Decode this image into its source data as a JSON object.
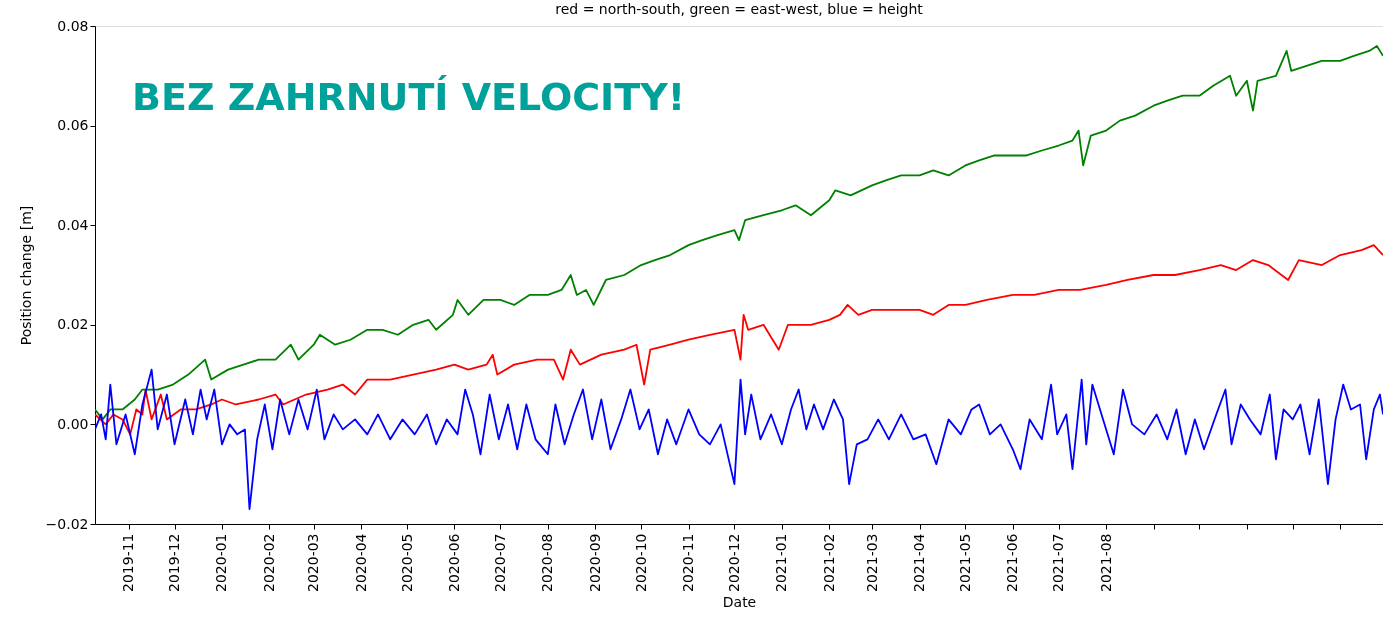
{
  "chart_data": {
    "type": "line",
    "title": "red = north-south, green = east-west, blue = height",
    "xlabel": "Date",
    "ylabel": "Position change [m]",
    "annotations": [
      "BEZ ZAHRNUTÍ VELOCITY!"
    ],
    "xlim": [
      "2019-10-10",
      "2022-01-29"
    ],
    "xticks": [
      "2019-11",
      "2019-12",
      "2020-01",
      "2020-02",
      "2020-03",
      "2020-04",
      "2020-05",
      "2020-06",
      "2020-07",
      "2020-08",
      "2020-09",
      "2020-10",
      "2020-11",
      "2020-12",
      "2021-01",
      "2021-02",
      "2021-03",
      "2021-04",
      "2021-05",
      "2021-06",
      "2021-07",
      "2021-08",
      {
        "value": "2021-09",
        "label": null
      },
      {
        "value": "2021-10",
        "label": null
      },
      {
        "value": "2021-11",
        "label": null
      },
      {
        "value": "2021-12",
        "label": null
      },
      {
        "value": "2022-01",
        "label": null
      }
    ],
    "ylim": [
      -0.02,
      0.08
    ],
    "yticks": [
      {
        "value": -0.02,
        "label": "−0.02"
      },
      {
        "value": 0,
        "label": "0.00"
      },
      {
        "value": 0.02,
        "label": "0.02"
      },
      {
        "value": 0.04,
        "label": "0.04"
      },
      {
        "value": 0.06,
        "label": "0.06"
      },
      {
        "value": 0.08,
        "label": "0.08"
      }
    ],
    "grid": false,
    "marker": "none",
    "line_style": "solid",
    "series": [
      {
        "color": "#ff0000",
        "x": [
          "2019-10-10",
          "2019-10-17",
          "2019-10-22",
          "2019-10-28",
          "2019-11-02",
          "2019-11-06",
          "2019-11-10",
          "2019-11-12",
          "2019-11-16",
          "2019-11-22",
          "2019-11-26",
          "2019-12-05",
          "2019-12-15",
          "2019-12-25",
          "2020-01-01",
          "2020-01-10",
          "2020-01-25",
          "2020-02-05",
          "2020-02-10",
          "2020-02-25",
          "2020-03-10",
          "2020-03-20",
          "2020-03-28",
          "2020-04-05",
          "2020-04-20",
          "2020-05-05",
          "2020-05-20",
          "2020-06-01",
          "2020-06-10",
          "2020-06-22",
          "2020-06-26",
          "2020-06-29",
          "2020-07-10",
          "2020-07-25",
          "2020-08-05",
          "2020-08-11",
          "2020-08-16",
          "2020-08-22",
          "2020-09-05",
          "2020-09-20",
          "2020-09-28",
          "2020-10-03",
          "2020-10-07",
          "2020-10-20",
          "2020-11-01",
          "2020-11-15",
          "2020-12-01",
          "2020-12-05",
          "2020-12-07",
          "2020-12-10",
          "2020-12-20",
          "2020-12-30",
          "2021-01-05",
          "2021-01-20",
          "2021-02-01",
          "2021-02-08",
          "2021-02-13",
          "2021-02-20",
          "2021-03-01",
          "2021-03-15",
          "2021-04-01",
          "2021-04-10",
          "2021-04-20",
          "2021-05-01",
          "2021-05-15",
          "2021-06-01",
          "2021-06-15",
          "2021-07-01",
          "2021-07-15",
          "2021-08-01",
          "2021-08-15",
          "2021-09-01",
          "2021-09-15",
          "2021-10-01",
          "2021-10-15",
          "2021-10-25",
          "2021-11-05",
          "2021-11-15",
          "2021-11-28",
          "2021-12-05",
          "2021-12-20",
          "2022-01-01",
          "2022-01-15",
          "2022-01-23",
          "2022-01-29"
        ],
        "values": [
          0.002,
          0.0,
          0.002,
          0.001,
          -0.002,
          0.003,
          0.002,
          0.007,
          0.001,
          0.006,
          0.001,
          0.003,
          0.003,
          0.004,
          0.005,
          0.004,
          0.005,
          0.006,
          0.004,
          0.006,
          0.007,
          0.008,
          0.006,
          0.009,
          0.009,
          0.01,
          0.011,
          0.012,
          0.011,
          0.012,
          0.014,
          0.01,
          0.012,
          0.013,
          0.013,
          0.009,
          0.015,
          0.012,
          0.014,
          0.015,
          0.016,
          0.008,
          0.015,
          0.016,
          0.017,
          0.018,
          0.019,
          0.013,
          0.022,
          0.019,
          0.02,
          0.015,
          0.02,
          0.02,
          0.021,
          0.022,
          0.024,
          0.022,
          0.023,
          0.023,
          0.023,
          0.022,
          0.024,
          0.024,
          0.025,
          0.026,
          0.026,
          0.027,
          0.027,
          0.028,
          0.029,
          0.03,
          0.03,
          0.031,
          0.032,
          0.031,
          0.033,
          0.032,
          0.029,
          0.033,
          0.032,
          0.034,
          0.035,
          0.036,
          0.034
        ]
      },
      {
        "color": "#008000",
        "x": [
          "2019-10-10",
          "2019-10-15",
          "2019-10-20",
          "2019-10-28",
          "2019-11-05",
          "2019-11-10",
          "2019-11-20",
          "2019-11-30",
          "2019-12-10",
          "2019-12-21",
          "2019-12-25",
          "2020-01-05",
          "2020-01-15",
          "2020-01-25",
          "2020-02-05",
          "2020-02-15",
          "2020-02-20",
          "2020-03-01",
          "2020-03-05",
          "2020-03-15",
          "2020-03-25",
          "2020-04-05",
          "2020-04-15",
          "2020-04-25",
          "2020-05-05",
          "2020-05-15",
          "2020-05-20",
          "2020-05-31",
          "2020-06-03",
          "2020-06-10",
          "2020-06-20",
          "2020-07-01",
          "2020-07-10",
          "2020-07-20",
          "2020-08-01",
          "2020-08-10",
          "2020-08-16",
          "2020-08-20",
          "2020-08-26",
          "2020-08-31",
          "2020-09-08",
          "2020-09-20",
          "2020-10-01",
          "2020-10-10",
          "2020-10-20",
          "2020-11-01",
          "2020-11-10",
          "2020-11-20",
          "2020-12-01",
          "2020-12-04",
          "2020-12-08",
          "2020-12-20",
          "2021-01-01",
          "2021-01-10",
          "2021-01-20",
          "2021-02-01",
          "2021-02-05",
          "2021-02-15",
          "2021-03-01",
          "2021-03-10",
          "2021-03-20",
          "2021-04-01",
          "2021-04-10",
          "2021-04-20",
          "2021-05-01",
          "2021-05-10",
          "2021-05-20",
          "2021-06-01",
          "2021-06-10",
          "2021-06-20",
          "2021-07-01",
          "2021-07-10",
          "2021-07-14",
          "2021-07-17",
          "2021-07-22",
          "2021-08-01",
          "2021-08-10",
          "2021-08-20",
          "2021-09-01",
          "2021-09-10",
          "2021-09-20",
          "2021-10-01",
          "2021-10-10",
          "2021-10-21",
          "2021-10-25",
          "2021-11-01",
          "2021-11-05",
          "2021-11-08",
          "2021-11-20",
          "2021-11-27",
          "2021-11-30",
          "2021-12-10",
          "2021-12-20",
          "2022-01-01",
          "2022-01-10",
          "2022-01-20",
          "2022-01-25",
          "2022-01-29"
        ],
        "values": [
          0.003,
          0.001,
          0.003,
          0.003,
          0.005,
          0.007,
          0.007,
          0.008,
          0.01,
          0.013,
          0.009,
          0.011,
          0.012,
          0.013,
          0.013,
          0.016,
          0.013,
          0.016,
          0.018,
          0.016,
          0.017,
          0.019,
          0.019,
          0.018,
          0.02,
          0.021,
          0.019,
          0.022,
          0.025,
          0.022,
          0.025,
          0.025,
          0.024,
          0.026,
          0.026,
          0.027,
          0.03,
          0.026,
          0.027,
          0.024,
          0.029,
          0.03,
          0.032,
          0.033,
          0.034,
          0.036,
          0.037,
          0.038,
          0.039,
          0.037,
          0.041,
          0.042,
          0.043,
          0.044,
          0.042,
          0.045,
          0.047,
          0.046,
          0.048,
          0.049,
          0.05,
          0.05,
          0.051,
          0.05,
          0.052,
          0.053,
          0.054,
          0.054,
          0.054,
          0.055,
          0.056,
          0.057,
          0.059,
          0.052,
          0.058,
          0.059,
          0.061,
          0.062,
          0.064,
          0.065,
          0.066,
          0.066,
          0.068,
          0.07,
          0.066,
          0.069,
          0.063,
          0.069,
          0.07,
          0.075,
          0.071,
          0.072,
          0.073,
          0.073,
          0.074,
          0.075,
          0.076,
          0.074
        ]
      },
      {
        "color": "#0000ff",
        "x": [
          "2019-10-10",
          "2019-10-14",
          "2019-10-17",
          "2019-10-20",
          "2019-10-24",
          "2019-10-30",
          "2019-11-05",
          "2019-11-10",
          "2019-11-16",
          "2019-11-20",
          "2019-11-26",
          "2019-12-01",
          "2019-12-08",
          "2019-12-13",
          "2019-12-18",
          "2019-12-22",
          "2019-12-27",
          "2020-01-01",
          "2020-01-06",
          "2020-01-11",
          "2020-01-16",
          "2020-01-19",
          "2020-01-24",
          "2020-01-29",
          "2020-02-03",
          "2020-02-08",
          "2020-02-14",
          "2020-02-20",
          "2020-02-26",
          "2020-03-03",
          "2020-03-08",
          "2020-03-14",
          "2020-03-20",
          "2020-03-28",
          "2020-04-05",
          "2020-04-12",
          "2020-04-20",
          "2020-04-28",
          "2020-05-06",
          "2020-05-14",
          "2020-05-20",
          "2020-05-27",
          "2020-06-03",
          "2020-06-08",
          "2020-06-13",
          "2020-06-18",
          "2020-06-24",
          "2020-06-30",
          "2020-07-06",
          "2020-07-12",
          "2020-07-18",
          "2020-07-24",
          "2020-08-01",
          "2020-08-06",
          "2020-08-12",
          "2020-08-18",
          "2020-08-24",
          "2020-08-30",
          "2020-09-05",
          "2020-09-11",
          "2020-09-18",
          "2020-09-24",
          "2020-09-30",
          "2020-10-06",
          "2020-10-12",
          "2020-10-18",
          "2020-10-24",
          "2020-11-01",
          "2020-11-08",
          "2020-11-15",
          "2020-11-22",
          "2020-12-01",
          "2020-12-05",
          "2020-12-08",
          "2020-12-12",
          "2020-12-18",
          "2020-12-25",
          "2021-01-01",
          "2021-01-07",
          "2021-01-12",
          "2021-01-17",
          "2021-01-22",
          "2021-01-28",
          "2021-02-04",
          "2021-02-10",
          "2021-02-14",
          "2021-02-19",
          "2021-02-26",
          "2021-03-05",
          "2021-03-12",
          "2021-03-20",
          "2021-03-28",
          "2021-04-05",
          "2021-04-12",
          "2021-04-20",
          "2021-04-28",
          "2021-05-05",
          "2021-05-10",
          "2021-05-17",
          "2021-05-24",
          "2021-06-01",
          "2021-06-06",
          "2021-06-12",
          "2021-06-20",
          "2021-06-26",
          "2021-06-30",
          "2021-07-06",
          "2021-07-10",
          "2021-07-16",
          "2021-07-19",
          "2021-07-23",
          "2021-07-30",
          "2021-08-06",
          "2021-08-12",
          "2021-08-18",
          "2021-08-26",
          "2021-09-03",
          "2021-09-10",
          "2021-09-16",
          "2021-09-22",
          "2021-09-28",
          "2021-10-04",
          "2021-10-12",
          "2021-10-18",
          "2021-10-22",
          "2021-10-28",
          "2021-11-03",
          "2021-11-10",
          "2021-11-16",
          "2021-11-20",
          "2021-11-25",
          "2021-12-01",
          "2021-12-06",
          "2021-12-12",
          "2021-12-18",
          "2021-12-24",
          "2021-12-29",
          "2022-01-03",
          "2022-01-08",
          "2022-01-14",
          "2022-01-18",
          "2022-01-23",
          "2022-01-27",
          "2022-01-29"
        ],
        "values": [
          -0.001,
          0.002,
          -0.003,
          0.008,
          -0.004,
          0.002,
          -0.006,
          0.004,
          0.011,
          -0.001,
          0.006,
          -0.004,
          0.005,
          -0.002,
          0.007,
          0.001,
          0.007,
          -0.004,
          0.0,
          -0.002,
          -0.001,
          -0.017,
          -0.003,
          0.004,
          -0.005,
          0.005,
          -0.002,
          0.005,
          -0.001,
          0.007,
          -0.003,
          0.002,
          -0.001,
          0.001,
          -0.002,
          0.002,
          -0.003,
          0.001,
          -0.002,
          0.002,
          -0.004,
          0.001,
          -0.002,
          0.007,
          0.002,
          -0.006,
          0.006,
          -0.003,
          0.004,
          -0.005,
          0.004,
          -0.003,
          -0.006,
          0.004,
          -0.004,
          0.002,
          0.007,
          -0.003,
          0.005,
          -0.005,
          0.001,
          0.007,
          -0.001,
          0.003,
          -0.006,
          0.001,
          -0.004,
          0.003,
          -0.002,
          -0.004,
          0.0,
          -0.012,
          0.009,
          -0.002,
          0.006,
          -0.003,
          0.002,
          -0.004,
          0.003,
          0.007,
          -0.001,
          0.004,
          -0.001,
          0.005,
          0.001,
          -0.012,
          -0.004,
          -0.003,
          0.001,
          -0.003,
          0.002,
          -0.003,
          -0.002,
          -0.008,
          0.001,
          -0.002,
          0.003,
          0.004,
          -0.002,
          0.0,
          -0.005,
          -0.009,
          0.001,
          -0.003,
          0.008,
          -0.002,
          0.002,
          -0.009,
          0.009,
          -0.004,
          0.008,
          0.001,
          -0.006,
          0.007,
          0.0,
          -0.002,
          0.002,
          -0.003,
          0.003,
          -0.006,
          0.001,
          -0.005,
          0.002,
          0.007,
          -0.004,
          0.004,
          0.001,
          -0.002,
          0.006,
          -0.007,
          0.003,
          0.001,
          0.004,
          -0.006,
          0.005,
          -0.012,
          0.001,
          0.008,
          0.003,
          0.004,
          -0.007,
          0.003,
          0.006,
          0.002
        ]
      }
    ]
  }
}
